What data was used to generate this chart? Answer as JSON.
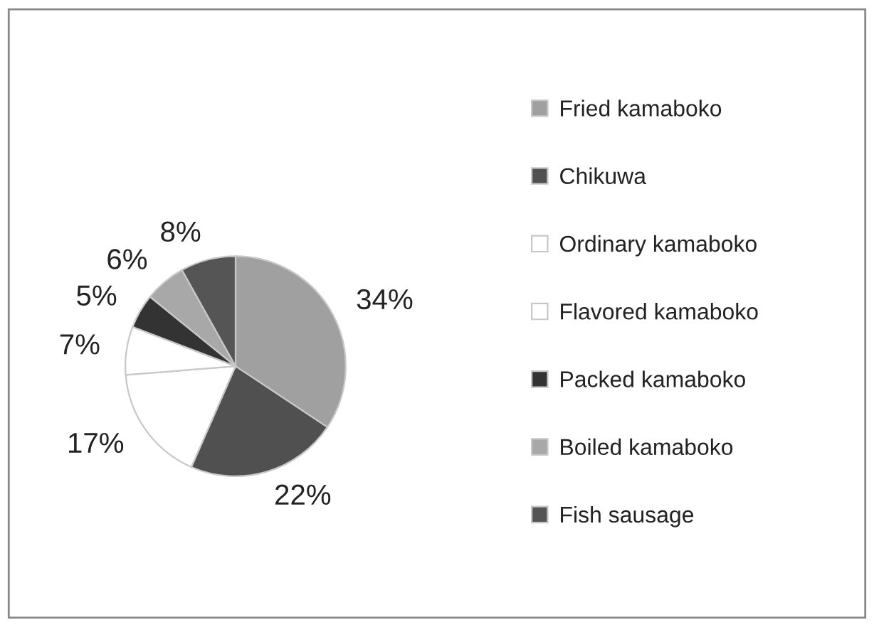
{
  "chart_data": {
    "type": "pie",
    "categories": [
      "Fried kamaboko",
      "Chikuwa",
      "Ordinary kamaboko",
      "Flavored kamaboko",
      "Packed kamaboko",
      "Boiled kamaboko",
      "Fish sausage"
    ],
    "values": [
      34,
      22,
      17,
      7,
      5,
      6,
      8
    ],
    "value_labels": [
      "34%",
      "22%",
      "17%",
      "7%",
      "5%",
      "6%",
      "8%"
    ],
    "colors": [
      "#a0a0a0",
      "#505050",
      "#ffffff",
      "#ffffff",
      "#333333",
      "#a8a8a8",
      "#555555"
    ],
    "legend": "right"
  }
}
